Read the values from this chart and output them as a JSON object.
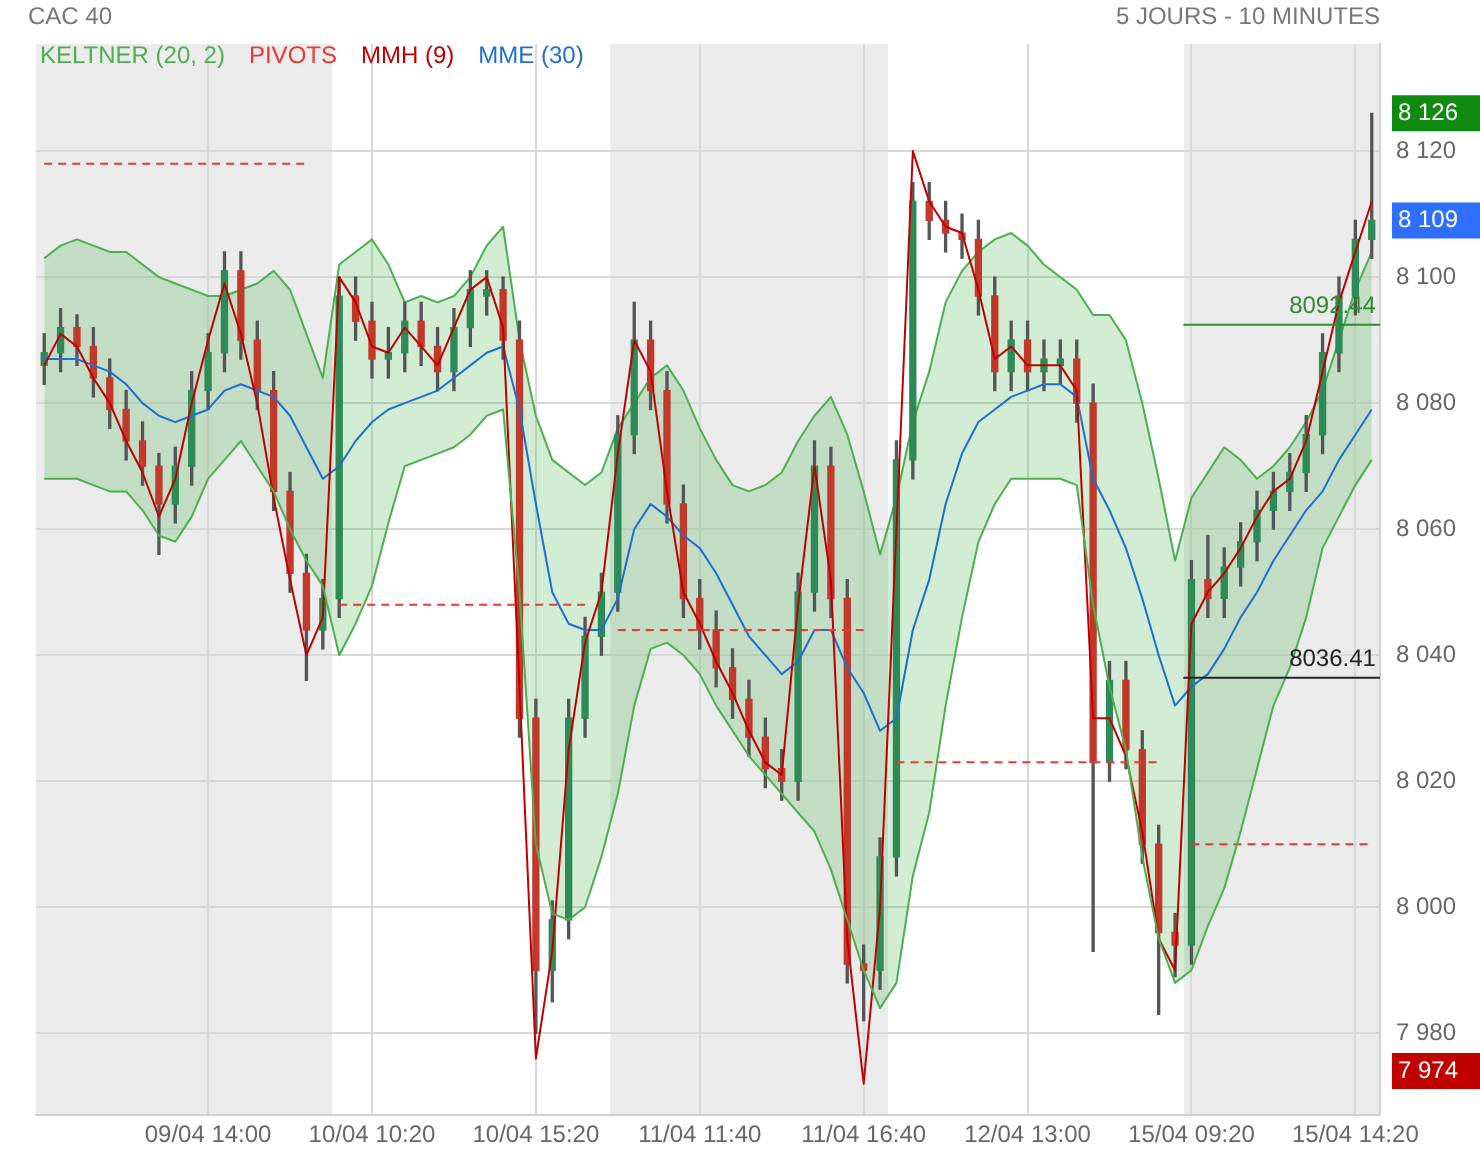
{
  "chart_data": {
    "type": "candlestick",
    "title": "CAC 40",
    "subtitle": "5 JOURS - 10 MINUTES",
    "categories": [
      null,
      null,
      null,
      null,
      null,
      null,
      null,
      null,
      null,
      null,
      "09/04 14:00",
      null,
      null,
      null,
      null,
      null,
      null,
      null,
      null,
      null,
      "10/04 10:20",
      null,
      null,
      null,
      null,
      null,
      null,
      null,
      null,
      null,
      "10/04 15:20",
      null,
      null,
      null,
      null,
      null,
      null,
      null,
      null,
      null,
      "11/04 11:40",
      null,
      null,
      null,
      null,
      null,
      null,
      null,
      null,
      null,
      "11/04 16:40",
      null,
      null,
      null,
      null,
      null,
      null,
      null,
      null,
      null,
      "12/04 13:00",
      null,
      null,
      null,
      null,
      null,
      null,
      null,
      null,
      null,
      "15/04 09:20",
      null,
      null,
      null,
      null,
      null,
      null,
      null,
      null,
      null,
      "15/04 14:20",
      null
    ],
    "ohlc": [
      [
        8086,
        8091,
        8083,
        8088
      ],
      [
        8088,
        8095,
        8085,
        8092
      ],
      [
        8092,
        8094,
        8086,
        8089
      ],
      [
        8089,
        8092,
        8081,
        8084
      ],
      [
        8084,
        8087,
        8076,
        8079
      ],
      [
        8079,
        8082,
        8071,
        8074
      ],
      [
        8074,
        8077,
        8067,
        8070
      ],
      [
        8070,
        8072,
        8056,
        8064
      ],
      [
        8064,
        8073,
        8061,
        8070
      ],
      [
        8070,
        8085,
        8067,
        8082
      ],
      [
        8082,
        8091,
        8079,
        8088
      ],
      [
        8088,
        8104,
        8085,
        8101
      ],
      [
        8101,
        8104,
        8087,
        8090
      ],
      [
        8090,
        8093,
        8079,
        8082
      ],
      [
        8082,
        8085,
        8063,
        8066
      ],
      [
        8066,
        8069,
        8050,
        8053
      ],
      [
        8053,
        8056,
        8036,
        8044
      ],
      [
        8044,
        8052,
        8041,
        8049
      ],
      [
        8049,
        8100,
        8046,
        8097
      ],
      [
        8097,
        8100,
        8090,
        8093
      ],
      [
        8093,
        8096,
        8084,
        8087
      ],
      [
        8087,
        8092,
        8084,
        8088
      ],
      [
        8088,
        8096,
        8085,
        8093
      ],
      [
        8093,
        8096,
        8086,
        8089
      ],
      [
        8089,
        8092,
        8082,
        8085
      ],
      [
        8085,
        8095,
        8082,
        8092
      ],
      [
        8092,
        8101,
        8089,
        8098
      ],
      [
        8097,
        8101,
        8094,
        8098
      ],
      [
        8098,
        8100,
        8087,
        8090
      ],
      [
        8090,
        8093,
        8027,
        8030
      ],
      [
        8030,
        8033,
        7980,
        7990
      ],
      [
        7990,
        8001,
        7985,
        7998
      ],
      [
        7998,
        8033,
        7995,
        8030
      ],
      [
        8030,
        8046,
        8027,
        8043
      ],
      [
        8043,
        8053,
        8040,
        8050
      ],
      [
        8050,
        8078,
        8047,
        8075
      ],
      [
        8075,
        8096,
        8072,
        8090
      ],
      [
        8090,
        8093,
        8079,
        8082
      ],
      [
        8082,
        8085,
        8061,
        8064
      ],
      [
        8064,
        8067,
        8046,
        8049
      ],
      [
        8049,
        8052,
        8041,
        8044
      ],
      [
        8044,
        8047,
        8035,
        8038
      ],
      [
        8038,
        8041,
        8030,
        8033
      ],
      [
        8033,
        8036,
        8024,
        8027
      ],
      [
        8027,
        8030,
        8019,
        8022
      ],
      [
        8022,
        8025,
        8017,
        8020
      ],
      [
        8020,
        8053,
        8017,
        8050
      ],
      [
        8050,
        8074,
        8047,
        8070
      ],
      [
        8070,
        8073,
        8046,
        8049
      ],
      [
        8049,
        8052,
        7988,
        7991
      ],
      [
        7991,
        7994,
        7982,
        7990
      ],
      [
        7990,
        8011,
        7987,
        8008
      ],
      [
        8008,
        8074,
        8005,
        8071
      ],
      [
        8071,
        8115,
        8068,
        8112
      ],
      [
        8112,
        8115,
        8106,
        8109
      ],
      [
        8109,
        8112,
        8104,
        8107
      ],
      [
        8107,
        8110,
        8103,
        8106
      ],
      [
        8106,
        8109,
        8094,
        8097
      ],
      [
        8097,
        8100,
        8082,
        8085
      ],
      [
        8085,
        8093,
        8082,
        8090
      ],
      [
        8090,
        8093,
        8082,
        8085
      ],
      [
        8085,
        8090,
        8082,
        8087
      ],
      [
        8086,
        8090,
        8083,
        8087
      ],
      [
        8087,
        8090,
        8077,
        8080
      ],
      [
        8080,
        8083,
        7993,
        8023
      ],
      [
        8023,
        8039,
        8020,
        8036
      ],
      [
        8036,
        8039,
        8022,
        8025
      ],
      [
        8025,
        8028,
        8007,
        8010
      ],
      [
        8010,
        8013,
        7983,
        7996
      ],
      [
        7996,
        7999,
        7989,
        7994
      ],
      [
        7994,
        8055,
        7991,
        8052
      ],
      [
        8052,
        8059,
        8046,
        8049
      ],
      [
        8049,
        8057,
        8046,
        8054
      ],
      [
        8054,
        8061,
        8051,
        8058
      ],
      [
        8058,
        8066,
        8055,
        8063
      ],
      [
        8063,
        8069,
        8060,
        8066
      ],
      [
        8066,
        8072,
        8063,
        8069
      ],
      [
        8069,
        8078,
        8066,
        8075
      ],
      [
        8075,
        8091,
        8072,
        8088
      ],
      [
        8088,
        8100,
        8085,
        8097
      ],
      [
        8097,
        8109,
        8094,
        8106
      ],
      [
        8106,
        8126,
        8103,
        8109
      ]
    ],
    "series": [
      {
        "name": "KELTNER (20, 2)",
        "type": "area",
        "color": "#4caf50",
        "values": [
          8103,
          8105,
          8106,
          8105,
          8104,
          8104,
          8102,
          8100,
          8099,
          8098,
          8097,
          8097,
          8098,
          8099,
          8101,
          8098,
          8091,
          8084,
          8102,
          8104,
          8106,
          8102,
          8096,
          8097,
          8096,
          8097,
          8100,
          8105,
          8108,
          8090,
          8078,
          8071,
          8069,
          8067,
          8069,
          8076,
          8080,
          8084,
          8086,
          8082,
          8076,
          8071,
          8067,
          8066,
          8067,
          8069,
          8074,
          8078,
          8081,
          8075,
          8066,
          8056,
          8065,
          8077,
          8085,
          8096,
          8101,
          8104,
          8106,
          8107,
          8105,
          8102,
          8100,
          8098,
          8094,
          8094,
          8090,
          8080,
          8068,
          8055,
          8065,
          8069,
          8073,
          8071,
          8068,
          8070,
          8073,
          8077,
          8082,
          8090,
          8098,
          8104
        ]
      },
      {
        "type": "line",
        "color": "#4caf50",
        "values": [
          8068,
          8068,
          8068,
          8067,
          8066,
          8066,
          8063,
          8059,
          8058,
          8062,
          8068,
          8071,
          8074,
          8070,
          8066,
          8060,
          8055,
          8051,
          8040,
          8045,
          8051,
          8061,
          8070,
          8071,
          8072,
          8073,
          8075,
          8078,
          8079,
          8050,
          8010,
          7999,
          7998,
          8000,
          8008,
          8018,
          8032,
          8041,
          8042,
          8040,
          8037,
          8032,
          8028,
          8024,
          8021,
          8018,
          8015,
          8012,
          8006,
          7998,
          7990,
          7984,
          7988,
          8005,
          8015,
          8032,
          8046,
          8058,
          8064,
          8068,
          8068,
          8068,
          8068,
          8067,
          8048,
          8035,
          8025,
          8008,
          7995,
          7988,
          7990,
          7997,
          8003,
          8012,
          8022,
          8032,
          8038,
          8046,
          8057,
          8062,
          8067,
          8071
        ]
      },
      {
        "name": "PIVOTS",
        "type": "line",
        "color": "#e53935",
        "line_style": "dashed",
        "values": [
          8118,
          8118,
          8118,
          8118,
          8118,
          8118,
          8118,
          8118,
          8118,
          8118,
          8118,
          8118,
          8118,
          8118,
          8118,
          8118,
          8118,
          null,
          8048,
          8048,
          8048,
          8048,
          8048,
          8048,
          8048,
          8048,
          8048,
          8048,
          8048,
          8048,
          8048,
          8048,
          8048,
          8048,
          null,
          8044,
          8044,
          8044,
          8044,
          8044,
          8044,
          8044,
          8044,
          8044,
          8044,
          8044,
          8044,
          8044,
          8044,
          8044,
          8044,
          null,
          8023,
          8023,
          8023,
          8023,
          8023,
          8023,
          8023,
          8023,
          8023,
          8023,
          8023,
          8023,
          8023,
          8023,
          8023,
          8023,
          8023,
          null,
          8010,
          8010,
          8010,
          8010,
          8010,
          8010,
          8010,
          8010,
          8010,
          8010,
          8010,
          8010
        ]
      },
      {
        "name": "MMH (9)",
        "type": "line",
        "color": "#c00000",
        "values": [
          8086,
          8091,
          8089,
          8084,
          8080,
          8074,
          8069,
          8062,
          8068,
          8080,
          8090,
          8099,
          8091,
          8080,
          8065,
          8052,
          8040,
          8046,
          8100,
          8096,
          8089,
          8088,
          8092,
          8089,
          8086,
          8092,
          8098,
          8100,
          8092,
          8035,
          7976,
          7993,
          8025,
          8042,
          8050,
          8072,
          8090,
          8085,
          8066,
          8050,
          8045,
          8039,
          8034,
          8028,
          8023,
          8021,
          8048,
          8070,
          8052,
          7995,
          7972,
          8000,
          8060,
          8120,
          8112,
          8108,
          8107,
          8098,
          8087,
          8089,
          8086,
          8086,
          8086,
          8082,
          8030,
          8030,
          8024,
          8012,
          7995,
          7990,
          8045,
          8050,
          8053,
          8057,
          8062,
          8066,
          8068,
          8074,
          8085,
          8096,
          8104,
          8112
        ]
      },
      {
        "name": "MME (30)",
        "type": "line",
        "color": "#1e6fd0",
        "values": [
          8087,
          8087,
          8087,
          8086,
          8085,
          8083,
          8080,
          8078,
          8077,
          8078,
          8079,
          8082,
          8083,
          8082,
          8081,
          8078,
          8073,
          8068,
          8070,
          8074,
          8077,
          8079,
          8080,
          8081,
          8082,
          8084,
          8086,
          8088,
          8089,
          8079,
          8064,
          8050,
          8045,
          8044,
          8044,
          8049,
          8060,
          8064,
          8062,
          8059,
          8057,
          8053,
          8048,
          8043,
          8040,
          8037,
          8039,
          8044,
          8044,
          8038,
          8034,
          8028,
          8030,
          8044,
          8052,
          8064,
          8072,
          8077,
          8079,
          8081,
          8082,
          8083,
          8083,
          8081,
          8068,
          8063,
          8057,
          8049,
          8040,
          8032,
          8035,
          8037,
          8041,
          8046,
          8050,
          8055,
          8059,
          8063,
          8066,
          8071,
          8075,
          8079
        ]
      }
    ],
    "ylim": [
      7967,
      8137
    ],
    "yticks": [
      {
        "value": 7980,
        "label": "7 980"
      },
      {
        "value": 8000,
        "label": "8 000"
      },
      {
        "value": 8020,
        "label": "8 020"
      },
      {
        "value": 8040,
        "label": "8 040"
      },
      {
        "value": 8060,
        "label": "8 060"
      },
      {
        "value": 8080,
        "label": "8 080"
      },
      {
        "value": 8100,
        "label": "8 100"
      },
      {
        "value": 8120,
        "label": "8 120"
      }
    ],
    "y2lim": [
      7967,
      8137
    ],
    "y2ticks": [
      {
        "value": 8126,
        "label": "8 126"
      },
      {
        "value": 8109,
        "label": "8 109"
      },
      {
        "value": 7974,
        "label": "7 974"
      }
    ],
    "grid": true,
    "legend": "top left",
    "marker": "none",
    "ref_lines": [
      {
        "axis": "y",
        "value": 8092.44,
        "label": "8092.44",
        "color": "#2e8b2e"
      },
      {
        "axis": "y",
        "value": 8036.41,
        "label": "8036.41",
        "color": "#222222"
      }
    ]
  }
}
